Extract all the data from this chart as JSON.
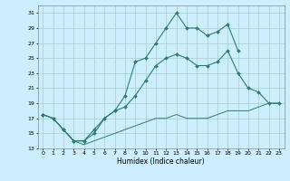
{
  "xlabel": "Humidex (Indice chaleur)",
  "bg_color": "#cceeff",
  "grid_color": "#aacccc",
  "line_color": "#2e7d6e",
  "xlim": [
    -0.5,
    23.5
  ],
  "ylim": [
    13,
    32
  ],
  "yticks": [
    13,
    15,
    17,
    19,
    21,
    23,
    25,
    27,
    29,
    31
  ],
  "xticks": [
    0,
    1,
    2,
    3,
    4,
    5,
    6,
    7,
    8,
    9,
    10,
    11,
    12,
    13,
    14,
    15,
    16,
    17,
    18,
    19,
    20,
    21,
    22,
    23
  ],
  "line1_x": [
    0,
    1,
    2,
    3,
    4,
    5,
    6,
    7,
    8,
    9,
    10,
    11,
    12,
    13,
    14,
    15,
    16,
    17,
    18,
    19
  ],
  "line1_y": [
    17.5,
    17.0,
    15.5,
    14.0,
    14.0,
    15.5,
    17.0,
    18.0,
    20.0,
    24.5,
    25.0,
    27.0,
    29.0,
    31.0,
    29.0,
    29.0,
    28.0,
    28.5,
    29.5,
    26.0
  ],
  "line2_x": [
    0,
    1,
    2,
    3,
    4,
    5,
    6,
    7,
    8,
    9,
    10,
    11,
    12,
    13,
    14,
    15,
    16,
    17,
    18,
    19,
    20,
    21,
    22,
    23
  ],
  "line2_y": [
    17.5,
    17.0,
    15.5,
    14.0,
    14.0,
    15.0,
    17.0,
    18.0,
    18.5,
    20.0,
    22.0,
    24.0,
    25.0,
    25.5,
    25.0,
    24.0,
    24.0,
    24.5,
    26.0,
    23.0,
    21.0,
    20.5,
    19.0,
    19.0
  ],
  "line3_x": [
    0,
    1,
    2,
    3,
    4,
    5,
    6,
    7,
    8,
    9,
    10,
    11,
    12,
    13,
    14,
    15,
    16,
    17,
    18,
    19,
    20,
    21,
    22,
    23
  ],
  "line3_y": [
    17.5,
    17.0,
    15.5,
    14.0,
    13.5,
    14.0,
    14.5,
    15.0,
    15.5,
    16.0,
    16.5,
    17.0,
    17.0,
    17.5,
    17.0,
    17.0,
    17.0,
    17.5,
    18.0,
    18.0,
    18.0,
    18.5,
    19.0,
    19.0
  ]
}
